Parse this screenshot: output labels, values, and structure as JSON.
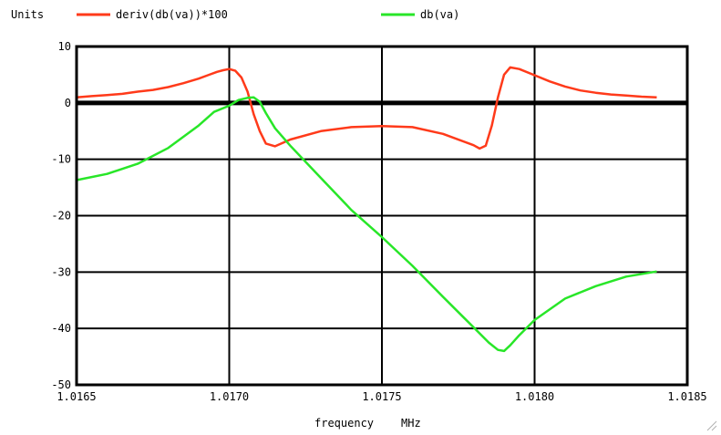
{
  "chart_data": {
    "type": "line",
    "units_label": "Units",
    "xlabel": "frequency",
    "xunit": "MHz",
    "xlim": [
      1.0165,
      1.0185
    ],
    "ylim": [
      -50,
      10
    ],
    "xticks": [
      1.0165,
      1.017,
      1.0175,
      1.018,
      1.0185
    ],
    "xtick_labels": [
      "1.0165",
      "1.0170",
      "1.0175",
      "1.0180",
      "1.0185"
    ],
    "yticks": [
      10,
      0,
      -10,
      -20,
      -30,
      -40,
      -50
    ],
    "ytick_labels": [
      "10",
      "0",
      "-10",
      "-20",
      "-30",
      "-40",
      "-50"
    ],
    "grid": true,
    "legend_position": "top",
    "series": [
      {
        "name": "deriv(db(va))*100",
        "color": "#ff3a1a",
        "x": [
          1.0165,
          1.01655,
          1.0166,
          1.01665,
          1.0167,
          1.01675,
          1.0168,
          1.01685,
          1.0169,
          1.01693,
          1.01696,
          1.01698,
          1.017,
          1.01702,
          1.01704,
          1.01706,
          1.01708,
          1.0171,
          1.01712,
          1.01715,
          1.0172,
          1.0173,
          1.0174,
          1.0175,
          1.0176,
          1.0177,
          1.0178,
          1.01782,
          1.01784,
          1.01786,
          1.01788,
          1.0179,
          1.01792,
          1.01795,
          1.018,
          1.01805,
          1.0181,
          1.01815,
          1.0182,
          1.01825,
          1.0183,
          1.01835,
          1.0184
        ],
        "y": [
          1.0,
          1.2,
          1.4,
          1.6,
          2.0,
          2.3,
          2.8,
          3.5,
          4.3,
          4.9,
          5.5,
          5.8,
          6.0,
          5.7,
          4.5,
          2.0,
          -2.0,
          -5.0,
          -7.2,
          -7.7,
          -6.5,
          -5.0,
          -4.3,
          -4.1,
          -4.3,
          -5.5,
          -7.5,
          -8.1,
          -7.6,
          -4.0,
          1.0,
          5.0,
          6.3,
          6.0,
          4.9,
          3.8,
          2.9,
          2.2,
          1.8,
          1.5,
          1.3,
          1.1,
          1.0
        ]
      },
      {
        "name": "db(va)",
        "color": "#28e628",
        "x": [
          1.0165,
          1.0166,
          1.0167,
          1.0168,
          1.0169,
          1.01695,
          1.017,
          1.01703,
          1.01706,
          1.01708,
          1.0171,
          1.01712,
          1.01715,
          1.0172,
          1.0173,
          1.0174,
          1.0175,
          1.0176,
          1.0177,
          1.0178,
          1.01785,
          1.01788,
          1.0179,
          1.01792,
          1.01795,
          1.018,
          1.0181,
          1.0182,
          1.0183,
          1.0184
        ],
        "y": [
          -13.7,
          -12.6,
          -10.8,
          -8.0,
          -4.0,
          -1.6,
          -0.5,
          0.5,
          0.9,
          1.0,
          0.2,
          -1.8,
          -4.5,
          -7.6,
          -13.3,
          -19.0,
          -23.8,
          -28.9,
          -34.4,
          -39.8,
          -42.5,
          -43.8,
          -44.0,
          -43.0,
          -41.2,
          -38.5,
          -34.7,
          -32.5,
          -30.8,
          -29.9
        ]
      }
    ]
  }
}
